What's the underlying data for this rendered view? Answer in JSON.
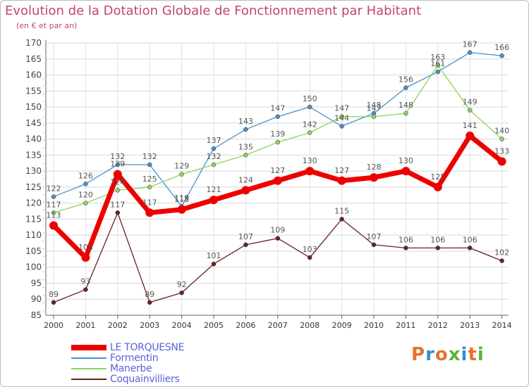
{
  "title": "Evolution de la Dotation Globale de Fonctionnement par Habitant",
  "subtitle": "(en € et par an)",
  "logo": {
    "text": "Proxiti",
    "colors": [
      "#e8712a",
      "#2f8fd1",
      "#e8712a",
      "#5cb23c",
      "#2f8fd1",
      "#e8712a",
      "#5cb23c"
    ]
  },
  "chart_data": {
    "type": "line",
    "x": [
      "2000",
      "2001",
      "2002",
      "2003",
      "2004",
      "2005",
      "2006",
      "2007",
      "2008",
      "2009",
      "2010",
      "2011",
      "2012",
      "2013",
      "2014"
    ],
    "ylim": [
      85,
      170
    ],
    "yticks": [
      85,
      90,
      95,
      100,
      105,
      110,
      115,
      120,
      125,
      130,
      135,
      140,
      145,
      150,
      155,
      160,
      165,
      170
    ],
    "grid": true,
    "legend_position": "bottom-left",
    "series": [
      {
        "name": "Formentin",
        "color": "#4a90c8",
        "values": [
          122,
          126,
          132,
          132,
          119,
          137,
          143,
          147,
          150,
          144,
          148,
          156,
          161,
          167,
          166
        ]
      },
      {
        "name": "Manerbe",
        "color": "#8cd45a",
        "values": [
          117,
          120,
          124,
          125,
          129,
          132,
          135,
          139,
          142,
          147,
          147,
          148,
          163,
          149,
          140
        ]
      },
      {
        "name": "Coquainvilliers",
        "color": "#6b2020",
        "values": [
          89,
          93,
          117,
          89,
          92,
          101,
          107,
          109,
          103,
          115,
          107,
          106,
          106,
          106,
          102
        ]
      },
      {
        "name": "LE TORQUESNE",
        "color": "#ee0000",
        "values": [
          113,
          103,
          129,
          117,
          118,
          121,
          124,
          127,
          130,
          127,
          128,
          130,
          125,
          141,
          133
        ]
      }
    ]
  }
}
